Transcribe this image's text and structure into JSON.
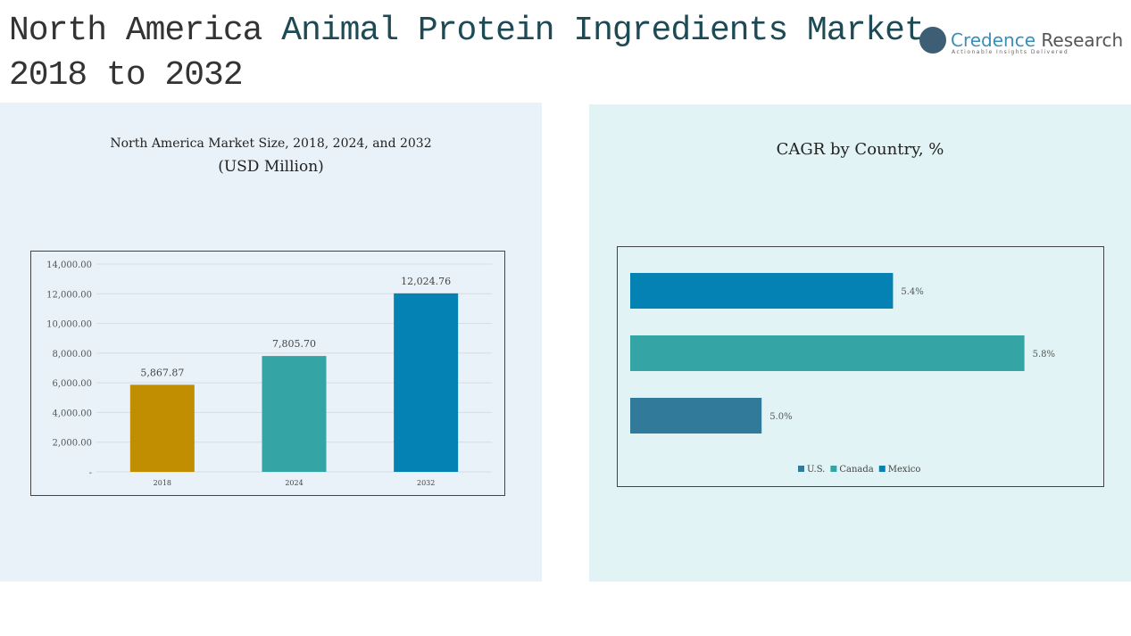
{
  "title": {
    "part1": "North America ",
    "part2": "Animal Protein Ingredients Market",
    "line2": "2018 to 2032"
  },
  "logo": {
    "name1": "Credence",
    "name2": " Research",
    "tagline": "Actionable Insights Delivered"
  },
  "chart_data": [
    {
      "type": "bar",
      "title": "North America Market Size, 2018, 2024, and 2032",
      "subtitle": "(USD Million)",
      "categories": [
        "2018",
        "2024",
        "2032"
      ],
      "values": [
        5867.87,
        7805.7,
        12024.76
      ],
      "value_labels": [
        "5,867.87",
        "7,805.70",
        "12,024.76"
      ],
      "colors": [
        "#c08e00",
        "#34a4a4",
        "#0582b4"
      ],
      "ylim": [
        0,
        14000
      ],
      "yticks": [
        0,
        2000,
        4000,
        6000,
        8000,
        10000,
        12000,
        14000
      ],
      "ytick_labels": [
        "-",
        "2,000.00",
        "4,000.00",
        "6,000.00",
        "8,000.00",
        "10,000.00",
        "12,000.00",
        "14,000.00"
      ],
      "grid": true
    },
    {
      "type": "bar",
      "orientation": "horizontal",
      "title": "CAGR by Country, %",
      "categories": [
        "Mexico",
        "Canada",
        "U.S."
      ],
      "values": [
        5.4,
        5.8,
        5.0
      ],
      "value_labels": [
        "5.4%",
        "5.8%",
        "5.0%"
      ],
      "colors": [
        "#0582b4",
        "#34a4a4",
        "#317a99"
      ],
      "legend": {
        "position": "bottom",
        "entries": [
          {
            "label": "U.S.",
            "color": "#317a99"
          },
          {
            "label": "Canada",
            "color": "#34a4a4"
          },
          {
            "label": "Mexico",
            "color": "#0582b4"
          }
        ]
      }
    }
  ]
}
